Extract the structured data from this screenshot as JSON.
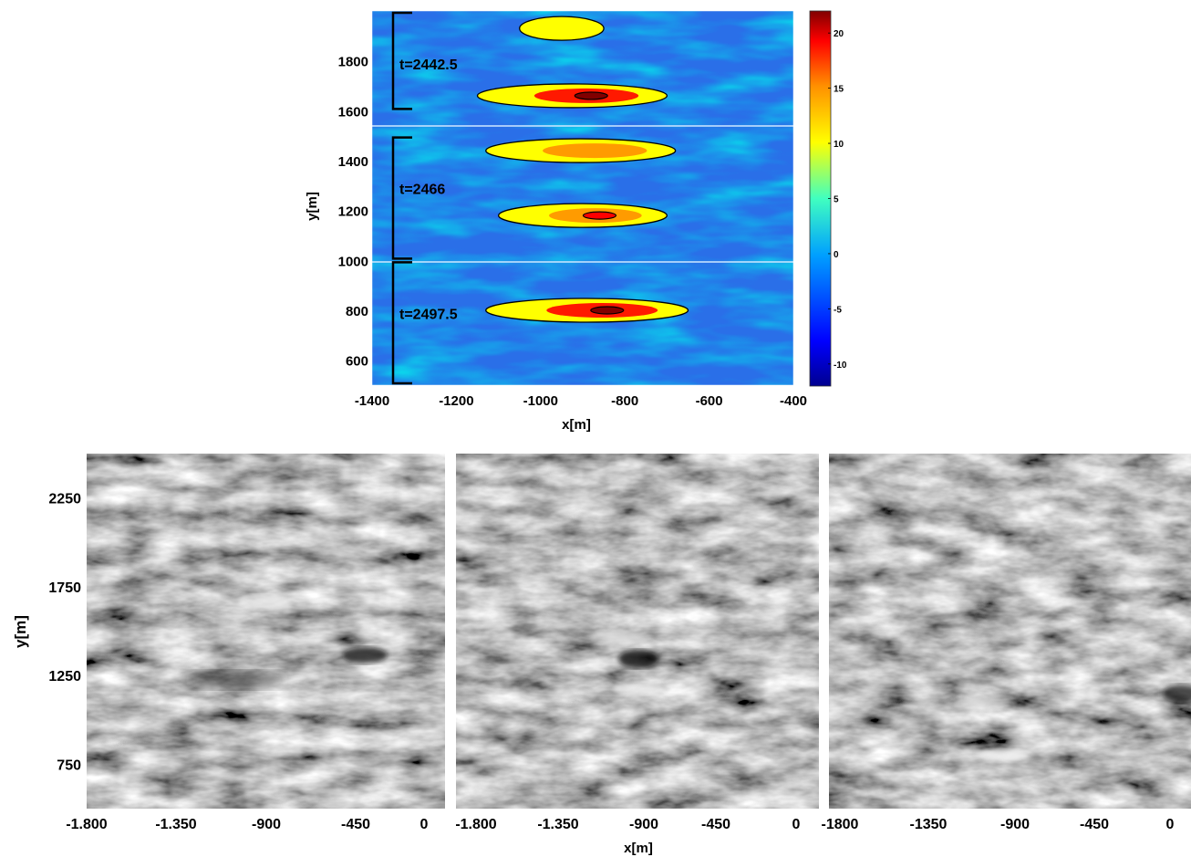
{
  "chart_data": [
    {
      "type": "heatmap",
      "xlabel": "x[m]",
      "ylabel": "y[m]",
      "xlim": [
        -1400,
        -400
      ],
      "ylim": [
        500,
        2000
      ],
      "xticks": [
        "-1400",
        "-1200",
        "-1000",
        "-800",
        "-600",
        "-400"
      ],
      "yticks": [
        "600",
        "800",
        "1000",
        "1200",
        "1400",
        "1600",
        "1800"
      ],
      "colorbar": {
        "range": [
          -12,
          22
        ],
        "ticks": [
          "20",
          "15",
          "10",
          "5",
          "0",
          "-5",
          "-10"
        ],
        "colors": [
          "#00008f",
          "#0000ff",
          "#00a0ff",
          "#40ffc0",
          "#ffff00",
          "#ff9000",
          "#ff0000",
          "#800000"
        ]
      },
      "annotations": [
        {
          "text": "t=2442.5",
          "y_range": [
            1600,
            2000
          ]
        },
        {
          "text": "t=2466",
          "y_range": [
            1000,
            1500
          ]
        },
        {
          "text": "t=2497.5",
          "y_range": [
            500,
            1000
          ]
        }
      ],
      "bands": [
        {
          "x_range": [
            -1150,
            -700
          ],
          "y": 1660,
          "peak": 20
        },
        {
          "x_range": [
            -1130,
            -680
          ],
          "y": 1440,
          "peak": 14
        },
        {
          "x_range": [
            -1100,
            -700
          ],
          "y": 1180,
          "peak": 18
        },
        {
          "x_range": [
            -1130,
            -650
          ],
          "y": 800,
          "peak": 20
        },
        {
          "x_range": [
            -1050,
            -850
          ],
          "y": 1930,
          "peak": 10
        }
      ]
    },
    {
      "type": "heatmap",
      "xlabel": "",
      "ylabel": "y[m]",
      "xticks": [
        "-1.800",
        "-1.350",
        "-900",
        "-450",
        "0"
      ],
      "yticks": [
        "2250",
        "1750",
        "1250",
        "750"
      ],
      "xlim": [
        -1800,
        0
      ],
      "ylim": [
        500,
        2500
      ],
      "colormap": "gray"
    },
    {
      "type": "heatmap",
      "xlabel": "x[m]",
      "xticks": [
        "-1.800",
        "-1.350",
        "-900",
        "-450",
        "0"
      ],
      "xlim": [
        -1800,
        0
      ],
      "ylim": [
        500,
        2500
      ],
      "colormap": "gray"
    },
    {
      "type": "heatmap",
      "xlabel": "",
      "xticks": [
        "-1800",
        "-1350",
        "-900",
        "-450",
        "0"
      ],
      "xlim": [
        -1800,
        0
      ],
      "ylim": [
        500,
        2500
      ],
      "colormap": "gray"
    }
  ]
}
